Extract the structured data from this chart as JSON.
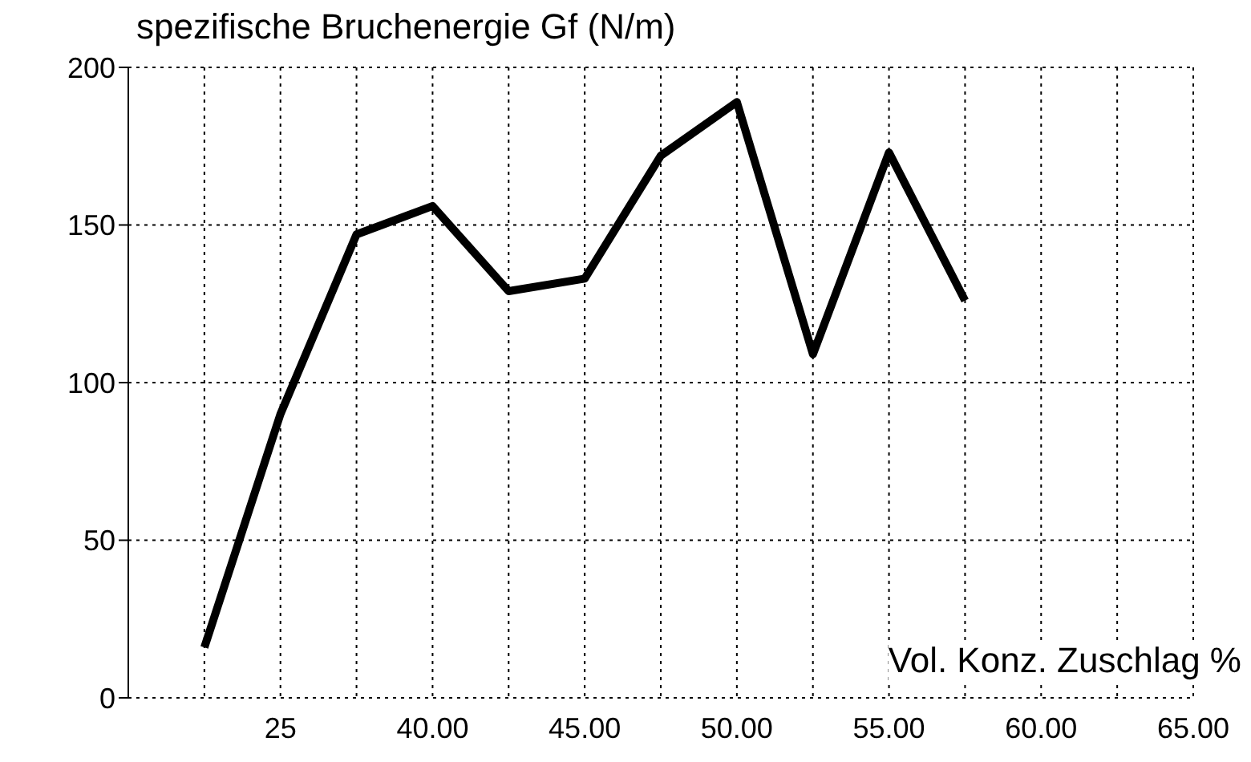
{
  "chart_data": {
    "type": "line",
    "title": "spezifische Bruchenergie Gf (N/m)",
    "xlabel": "Vol. Konz. Zuschlag %",
    "categories": [
      null,
      null,
      "25",
      null,
      "40.00",
      null,
      "45.00",
      null,
      "50.00",
      null,
      "55.00",
      null,
      "60.00",
      null,
      "65.00"
    ],
    "series": [
      {
        "color": "#000000",
        "values": [
          null,
          16,
          90,
          147,
          156,
          129,
          133,
          172,
          189,
          109,
          173,
          126,
          null,
          null,
          null
        ]
      }
    ],
    "ylim": [
      0,
      200
    ],
    "yticks": [
      0,
      50,
      100,
      150,
      200
    ],
    "grid": true,
    "marker": "none",
    "line_style": "solid"
  }
}
